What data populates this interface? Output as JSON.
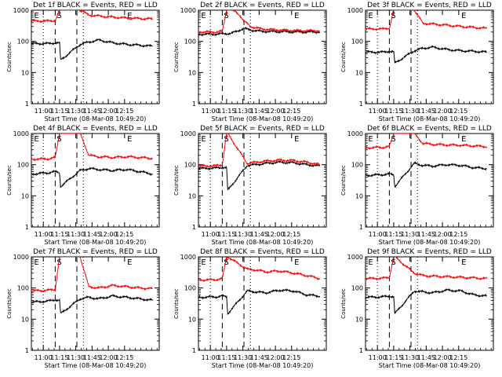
{
  "figure": {
    "panel_titles": [
      "Det 1f BLACK = Events, RED = LLD",
      "Det 2f BLACK = Events, RED = LLD",
      "Det 3f BLACK = Events, RED = LLD",
      "Det 4f BLACK = Events, RED = LLD",
      "Det 5f BLACK = Events, RED = LLD",
      "Det 6f BLACK = Events, RED = LLD",
      "Det 7f BLACK = Events, RED = LLD",
      "Det 8f BLACK = Events, RED = LLD",
      "Det 9f BLACK = Events, RED = LLD"
    ],
    "xlabel": "Start Time (08-Mar-08 10:49:20)",
    "ylabel": "Counts/sec",
    "x_ticks": [
      "11:00",
      "11:15",
      "11:30",
      "11:45",
      "12:00",
      "12:15"
    ],
    "y_ticks": [
      "1",
      "10",
      "100",
      "1000"
    ],
    "markers": [
      "E",
      "S",
      "E"
    ],
    "colors": {
      "events": "#000000",
      "lld": "#ff0000"
    }
  },
  "chart_data": [
    {
      "type": "line",
      "panel": "Det 1f",
      "title": "Det 1f BLACK = Events, RED = LLD",
      "xlabel": "Start Time (08-Mar-08 10:49:20)",
      "ylabel": "Counts/sec",
      "x_unit": "minutes after 10:49:20",
      "y_scale": "log",
      "ylim": [
        1,
        1000
      ],
      "x": [
        0,
        16,
        22,
        26,
        27,
        45,
        53,
        62,
        75,
        88,
        100,
        112
      ],
      "series": [
        {
          "name": "BLACK = Events",
          "values": [
            85,
            85,
            90,
            88,
            25,
            80,
            95,
            110,
            90,
            80,
            75,
            70
          ]
        },
        {
          "name": "RED = LLD",
          "values": [
            450,
            450,
            470,
            1000,
            1000,
            1000,
            700,
            650,
            600,
            560,
            540,
            520
          ]
        }
      ]
    },
    {
      "type": "line",
      "panel": "Det 2f",
      "title": "Det 2f BLACK = Events, RED = LLD",
      "xlabel": "Start Time (08-Mar-08 10:49:20)",
      "ylabel": "Counts/sec",
      "x_unit": "minutes after 10:49:20",
      "y_scale": "log",
      "ylim": [
        1,
        1000
      ],
      "x": [
        0,
        16,
        22,
        26,
        30,
        34,
        38,
        42,
        48,
        58,
        75,
        95,
        112
      ],
      "series": [
        {
          "name": "BLACK = Events",
          "values": [
            170,
            170,
            175,
            178,
            180,
            200,
            230,
            260,
            230,
            210,
            205,
            200,
            200
          ]
        },
        {
          "name": "RED = LLD",
          "values": [
            200,
            200,
            210,
            1000,
            1000,
            900,
            700,
            450,
            300,
            250,
            230,
            220,
            220
          ]
        }
      ]
    },
    {
      "type": "line",
      "panel": "Det 3f",
      "title": "Det 3f BLACK = Events, RED = LLD",
      "xlabel": "Start Time (08-Mar-08 10:49:20)",
      "ylabel": "Counts/sec",
      "x_unit": "minutes after 10:49:20",
      "y_scale": "log",
      "ylim": [
        1,
        1000
      ],
      "x": [
        0,
        16,
        22,
        26,
        27,
        45,
        53,
        62,
        75,
        88,
        100,
        112
      ],
      "series": [
        {
          "name": "BLACK = Events",
          "values": [
            45,
            45,
            48,
            46,
            20,
            50,
            60,
            65,
            55,
            50,
            48,
            45
          ]
        },
        {
          "name": "RED = LLD",
          "values": [
            250,
            250,
            270,
            1000,
            1000,
            1000,
            380,
            360,
            330,
            300,
            280,
            260
          ]
        }
      ]
    },
    {
      "type": "line",
      "panel": "Det 4f",
      "title": "Det 4f BLACK = Events, RED = LLD",
      "xlabel": "Start Time (08-Mar-08 10:49:20)",
      "ylabel": "Counts/sec",
      "x_unit": "minutes after 10:49:20",
      "y_scale": "log",
      "ylim": [
        1,
        1000
      ],
      "x": [
        0,
        16,
        22,
        26,
        27,
        45,
        53,
        62,
        75,
        88,
        100,
        112
      ],
      "series": [
        {
          "name": "BLACK = Events",
          "values": [
            50,
            55,
            60,
            55,
            20,
            65,
            75,
            70,
            65,
            70,
            60,
            50
          ]
        },
        {
          "name": "RED = LLD",
          "values": [
            150,
            155,
            170,
            1000,
            1000,
            1000,
            200,
            180,
            170,
            180,
            170,
            160
          ]
        }
      ]
    },
    {
      "type": "line",
      "panel": "Det 5f",
      "title": "Det 5f BLACK = Events, RED = LLD",
      "xlabel": "Start Time (08-Mar-08 10:49:20)",
      "ylabel": "Counts/sec",
      "x_unit": "minutes after 10:49:20",
      "y_scale": "log",
      "ylim": [
        1,
        1000
      ],
      "x": [
        0,
        16,
        22,
        26,
        27,
        45,
        53,
        62,
        75,
        88,
        100,
        112
      ],
      "series": [
        {
          "name": "BLACK = Events",
          "values": [
            75,
            78,
            82,
            80,
            15,
            95,
            100,
            110,
            120,
            115,
            100,
            90
          ]
        },
        {
          "name": "RED = LLD",
          "values": [
            90,
            92,
            100,
            1000,
            1000,
            110,
            120,
            130,
            140,
            135,
            120,
            100
          ]
        }
      ]
    },
    {
      "type": "line",
      "panel": "Det 6f",
      "title": "Det 6f BLACK = Events, RED = LLD",
      "xlabel": "Start Time (08-Mar-08 10:49:20)",
      "ylabel": "Counts/sec",
      "x_unit": "minutes after 10:49:20",
      "y_scale": "log",
      "ylim": [
        1,
        1000
      ],
      "x": [
        0,
        16,
        22,
        26,
        27,
        45,
        53,
        62,
        75,
        88,
        100,
        112
      ],
      "series": [
        {
          "name": "BLACK = Events",
          "values": [
            45,
            48,
            50,
            48,
            20,
            110,
            95,
            90,
            100,
            95,
            80,
            75
          ]
        },
        {
          "name": "RED = LLD",
          "values": [
            350,
            360,
            380,
            1000,
            1000,
            1000,
            480,
            450,
            430,
            420,
            400,
            380
          ]
        }
      ]
    },
    {
      "type": "line",
      "panel": "Det 7f",
      "title": "Det 7f BLACK = Events, RED = LLD",
      "xlabel": "Start Time (08-Mar-08 10:49:20)",
      "ylabel": "Counts/sec",
      "x_unit": "minutes after 10:49:20",
      "y_scale": "log",
      "ylim": [
        1,
        1000
      ],
      "x": [
        0,
        16,
        22,
        26,
        27,
        45,
        53,
        62,
        75,
        88,
        100,
        112
      ],
      "series": [
        {
          "name": "BLACK = Events",
          "values": [
            35,
            38,
            42,
            40,
            15,
            45,
            50,
            45,
            55,
            50,
            45,
            40
          ]
        },
        {
          "name": "RED = LLD",
          "values": [
            80,
            85,
            90,
            1000,
            1000,
            1000,
            110,
            100,
            120,
            110,
            100,
            95
          ]
        }
      ]
    },
    {
      "type": "line",
      "panel": "Det 8f",
      "title": "Det 8f BLACK = Events, RED = LLD",
      "xlabel": "Start Time (08-Mar-08 10:49:20)",
      "ylabel": "Counts/sec",
      "x_unit": "minutes after 10:49:20",
      "y_scale": "log",
      "ylim": [
        1,
        1000
      ],
      "x": [
        0,
        16,
        22,
        26,
        27,
        45,
        53,
        62,
        75,
        88,
        100,
        112
      ],
      "series": [
        {
          "name": "BLACK = Events",
          "values": [
            50,
            52,
            55,
            52,
            15,
            80,
            75,
            70,
            85,
            80,
            60,
            55
          ]
        },
        {
          "name": "RED = LLD",
          "values": [
            180,
            185,
            200,
            1000,
            1000,
            400,
            380,
            330,
            350,
            300,
            250,
            200
          ]
        }
      ]
    },
    {
      "type": "line",
      "panel": "Det 9f",
      "title": "Det 9f BLACK = Events, RED = LLD",
      "xlabel": "Start Time (08-Mar-08 10:49:20)",
      "ylabel": "Counts/sec",
      "x_unit": "minutes after 10:49:20",
      "y_scale": "log",
      "ylim": [
        1,
        1000
      ],
      "x": [
        0,
        16,
        22,
        26,
        27,
        45,
        53,
        62,
        75,
        88,
        100,
        112
      ],
      "series": [
        {
          "name": "BLACK = Events",
          "values": [
            50,
            52,
            55,
            52,
            15,
            80,
            75,
            70,
            85,
            80,
            60,
            55
          ]
        },
        {
          "name": "RED = LLD",
          "values": [
            200,
            205,
            220,
            1000,
            1000,
            300,
            250,
            240,
            230,
            220,
            210,
            200
          ]
        }
      ]
    }
  ]
}
